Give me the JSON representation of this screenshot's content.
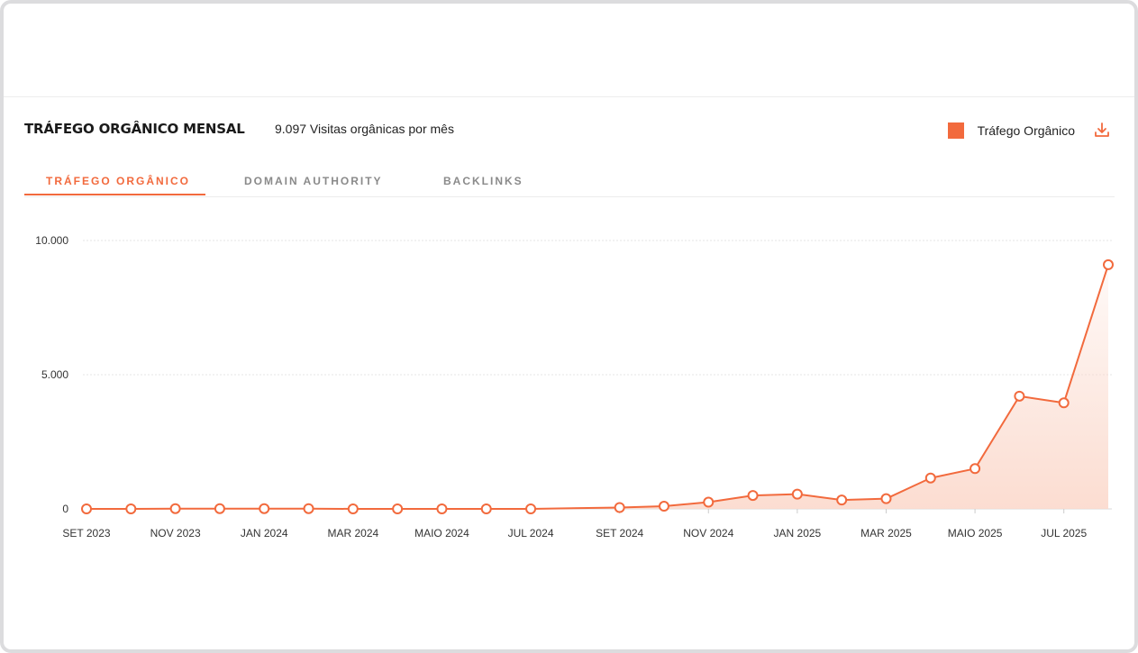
{
  "header": {
    "title": "TRÁFEGO ORGÂNICO MENSAL",
    "subtitle": "9.097 Visitas orgânicas por mês",
    "legend_label": "Tráfego Orgânico"
  },
  "tabs": [
    {
      "label": "TRÁFEGO ORGÂNICO",
      "active": true
    },
    {
      "label": "DOMAIN AUTHORITY",
      "active": false
    },
    {
      "label": "BACKLINKS",
      "active": false
    }
  ],
  "colors": {
    "accent": "#f26a3d",
    "fill_top": "#fbd9cc",
    "grid": "#e6e6e6"
  },
  "icons": {
    "download": "download-icon"
  },
  "chart_data": {
    "type": "area",
    "x": [
      "SET 2023",
      "OUT 2023",
      "NOV 2023",
      "DEZ 2023",
      "JAN 2024",
      "FEV 2024",
      "MAR 2024",
      "ABR 2024",
      "MAIO 2024",
      "JUN 2024",
      "JUL 2024",
      "AGO 2024",
      "SET 2024",
      "OUT 2024",
      "NOV 2024",
      "DEZ 2024",
      "JAN 2025",
      "FEV 2025",
      "MAR 2025",
      "ABR 2025",
      "MAIO 2025",
      "JUN 2025",
      "JUL 2025",
      "AGO 2025"
    ],
    "series": [
      {
        "values": [
          0,
          0,
          10,
          10,
          10,
          10,
          0,
          0,
          0,
          0,
          0,
          null,
          50,
          100,
          250,
          500,
          550,
          330,
          380,
          1150,
          1500,
          4200,
          3950,
          9097
        ]
      }
    ],
    "x_tick_labels": [
      "SET 2023",
      "NOV 2023",
      "JAN 2024",
      "MAR 2024",
      "MAIO 2024",
      "JUL 2024",
      "SET 2024",
      "NOV 2024",
      "JAN 2025",
      "MAR 2025",
      "MAIO 2025",
      "JUL 2025"
    ],
    "y_ticks": [
      0,
      5000,
      10000
    ],
    "y_tick_labels": [
      "0",
      "5.000",
      "10.000"
    ],
    "ylim": [
      0,
      10000
    ],
    "grid": true,
    "legend_position": "top-right",
    "title": "TRÁFEGO ORGÂNICO MENSAL",
    "xlabel": "",
    "ylabel": ""
  }
}
